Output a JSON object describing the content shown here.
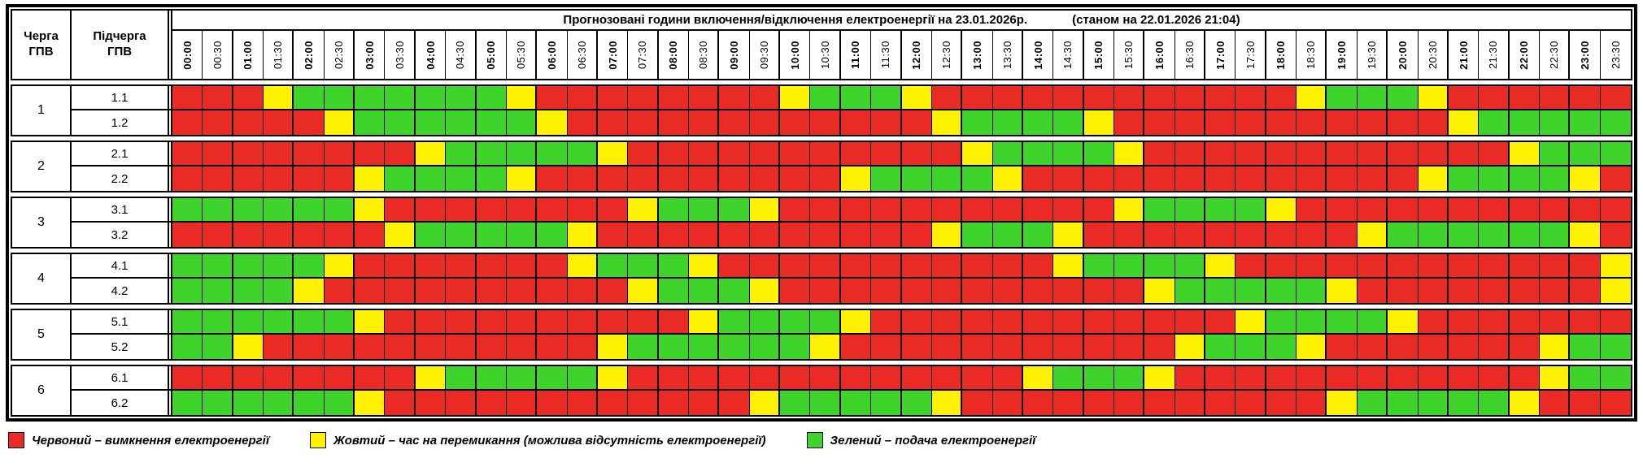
{
  "title": {
    "main": "Прогнозовані години включення/відключення електроенергії на 23.01.2026р.",
    "as_of": "(станом на 22.01.2026 21:04)"
  },
  "headers": {
    "queue": "Черга\nГПВ",
    "subqueue": "Підчерга\nГПВ"
  },
  "legend": [
    {
      "key": "R",
      "label": "Червоний – вимкнення електроенергії"
    },
    {
      "key": "Y",
      "label": "Жовтий – час на перемикання (можлива відсутність електроенергії)"
    },
    {
      "key": "G",
      "label": "Зелений – подача електроенергії"
    }
  ],
  "chart_data": {
    "type": "heatmap",
    "x_categories": [
      "00:00",
      "00:30",
      "01:00",
      "01:30",
      "02:00",
      "02:30",
      "03:00",
      "03:30",
      "04:00",
      "04:30",
      "05:00",
      "05:30",
      "06:00",
      "06:30",
      "07:00",
      "07:30",
      "08:00",
      "08:30",
      "09:00",
      "09:30",
      "10:00",
      "10:30",
      "11:00",
      "11:30",
      "12:00",
      "12:30",
      "13:00",
      "13:30",
      "14:00",
      "14:30",
      "15:00",
      "15:30",
      "16:00",
      "16:30",
      "17:00",
      "17:30",
      "18:00",
      "18:30",
      "19:00",
      "19:30",
      "20:00",
      "20:30",
      "21:00",
      "21:30",
      "22:00",
      "22:30",
      "23:00",
      "23:30"
    ],
    "cell_colors": {
      "R": "#EA2A24",
      "Y": "#FFF200",
      "G": "#3FD42C"
    },
    "value_meanings": {
      "R": "вимкнення електроенергії",
      "Y": "час на перемикання",
      "G": "подача електроенергії"
    },
    "row_groups": [
      {
        "queue": "1",
        "rows": [
          {
            "label": "1.1",
            "cells": "RRRYGGGGGGGYRRRRRRRRYGGGYRRRRRRRRRRRRYGGGYRRRRRR"
          },
          {
            "label": "1.2",
            "cells": "RRRRRYGGGGGGYRRRRRRRRRRRRYGGGGYRRRRRRRRRRRYGGGGG"
          }
        ]
      },
      {
        "queue": "2",
        "rows": [
          {
            "label": "2.1",
            "cells": "RRRRRRRRYGGGGGYRRRRRRRRRRRYGGGGYRRRRRRRRRRRRYGGG"
          },
          {
            "label": "2.2",
            "cells": "RRRRRRYGGGGYRRRRRRRRRRYGGGGYRRRRRRRRRRRRRYGGGGYR"
          }
        ]
      },
      {
        "queue": "3",
        "rows": [
          {
            "label": "3.1",
            "cells": "GGGGGGYRRRRRRRRYGGGYRRRRRRRRRRRYGGGGYRRRRRRRRRRR"
          },
          {
            "label": "3.2",
            "cells": "RRRRRRRYGGGGGYRRRRRRRRRRRYGGGYRRRRRRRRRYGGGGGGYR"
          }
        ]
      },
      {
        "queue": "4",
        "rows": [
          {
            "label": "4.1",
            "cells": "GGGGGYRRRRRRRYGGGYRRRRRRRRRRRYGGGGYRRRRRRRRRRRRY"
          },
          {
            "label": "4.2",
            "cells": "GGGGYRRRRRRRRRRYGGGYRRRRRRRRRRRRYGGGGGYRRRRRRRRY"
          }
        ]
      },
      {
        "queue": "5",
        "rows": [
          {
            "label": "5.1",
            "cells": "GGGGGGYRRRRRRRRRRYGGGGYRRRRRRRRRRRRYGGGGYRRRRRRR"
          },
          {
            "label": "5.2",
            "cells": "GGYRRRRRRRRRRRYGGGGGGYRRRRRRRRRRRYGGGYRRRRRRRYGG"
          }
        ]
      },
      {
        "queue": "6",
        "rows": [
          {
            "label": "6.1",
            "cells": "RRRRRRRRYGGGGGYRRRRRRRRRRRRRYGGGYRRRRRRRRRRRRYGG"
          },
          {
            "label": "6.2",
            "cells": "GGGGGGYRRRRRRRRRRRRYGGGGGYRRRRRRRRRRRRYGGGGGYRRR"
          }
        ]
      }
    ]
  }
}
